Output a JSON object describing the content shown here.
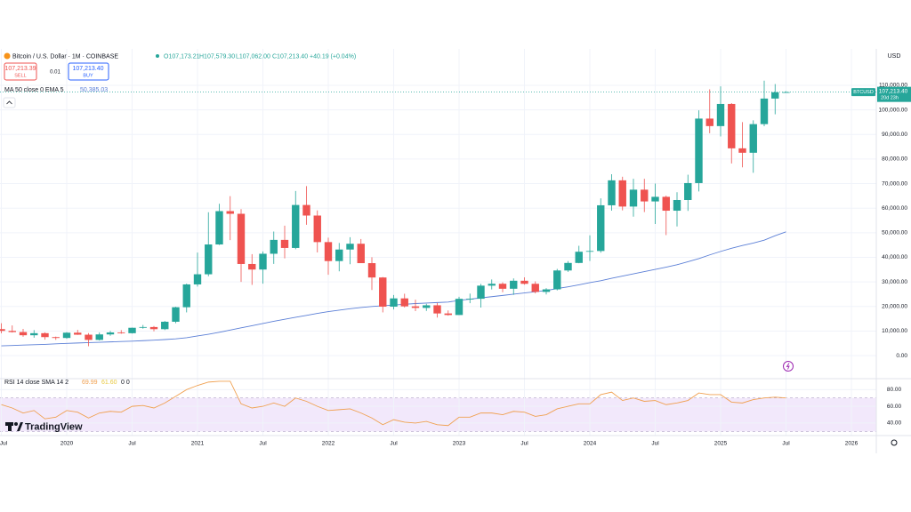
{
  "header": {
    "symbol": "Bitcoin / U.S. Dollar · 1M · COINBASE",
    "ohlc": [
      "O107,173.21",
      "H107,579.30",
      "L107,062.00",
      "C107,213.40"
    ],
    "change": "+40.19 (+0.04%)",
    "sell_price": "107,213.39",
    "sell": "SELL",
    "spread": "0.01",
    "buy_price": "107,213.40",
    "buy": "BUY",
    "currency": "USD",
    "price_label": "107,213.40",
    "countdown": "20d 23h",
    "logo": "TradingView"
  },
  "chart_data": {
    "type": "candlestick",
    "up_color": "#26a69a",
    "down_color": "#ef5350",
    "grid": true,
    "x": [
      "2019-07",
      "2019-08",
      "2019-09",
      "2019-10",
      "2019-11",
      "2019-12",
      "2020-01",
      "2020-02",
      "2020-03",
      "2020-04",
      "2020-05",
      "2020-06",
      "2020-07",
      "2020-08",
      "2020-09",
      "2020-10",
      "2020-11",
      "2020-12",
      "2021-01",
      "2021-02",
      "2021-03",
      "2021-04",
      "2021-05",
      "2021-06",
      "2021-07",
      "2021-08",
      "2021-09",
      "2021-10",
      "2021-11",
      "2021-12",
      "2022-01",
      "2022-02",
      "2022-03",
      "2022-04",
      "2022-05",
      "2022-06",
      "2022-07",
      "2022-08",
      "2022-09",
      "2022-10",
      "2022-11",
      "2022-12",
      "2023-01",
      "2023-02",
      "2023-03",
      "2023-04",
      "2023-05",
      "2023-06",
      "2023-07",
      "2023-08",
      "2023-09",
      "2023-10",
      "2023-11",
      "2023-12",
      "2024-01",
      "2024-02",
      "2024-03",
      "2024-04",
      "2024-05",
      "2024-06",
      "2024-07",
      "2024-08",
      "2024-09",
      "2024-10",
      "2024-11",
      "2024-12",
      "2025-01",
      "2025-02",
      "2025-03",
      "2025-04",
      "2025-05",
      "2025-06",
      "2025-07"
    ],
    "series": [
      {
        "name": "BTCUSD",
        "open": [
          10800,
          10080,
          9600,
          8300,
          9150,
          7550,
          7200,
          9350,
          8530,
          6410,
          8640,
          9450,
          9140,
          11350,
          11650,
          10780,
          13800,
          19700,
          28990,
          33110,
          45240,
          58800,
          57720,
          37300,
          35040,
          41460,
          47100,
          43820,
          61300,
          57000,
          46200,
          38480,
          43180,
          45530,
          37640,
          31800,
          19930,
          23300,
          20050,
          19430,
          20490,
          17170,
          16540,
          23130,
          23150,
          28480,
          29250,
          27220,
          30480,
          29230,
          25940,
          26970,
          34660,
          37720,
          42280,
          42580,
          61180,
          71330,
          60660,
          67530,
          62750,
          64620,
          58980,
          63330,
          70220,
          96450,
          93400,
          102400,
          84350,
          82550,
          94200,
          104600,
          107173.21
        ],
        "high": [
          13200,
          12300,
          10900,
          10400,
          9500,
          7750,
          9580,
          10500,
          9180,
          9460,
          10080,
          10400,
          11450,
          12480,
          12080,
          14100,
          19900,
          29300,
          41950,
          58350,
          61800,
          64900,
          59600,
          41300,
          42400,
          50500,
          52900,
          67000,
          69000,
          59100,
          47990,
          45850,
          48200,
          47450,
          40050,
          31990,
          24670,
          25200,
          22800,
          21100,
          21480,
          18400,
          23960,
          25250,
          29190,
          31000,
          29840,
          31430,
          31850,
          30230,
          27490,
          35300,
          38450,
          44700,
          48970,
          64000,
          73800,
          72800,
          71960,
          71950,
          70000,
          65100,
          66500,
          73620,
          99800,
          108350,
          109590,
          102750,
          95000,
          95750,
          111900,
          110500,
          107579.3
        ],
        "low": [
          9100,
          9400,
          7700,
          7300,
          6500,
          6430,
          6850,
          8450,
          3850,
          6150,
          8110,
          8900,
          8980,
          10990,
          9880,
          10420,
          13200,
          17600,
          28130,
          32300,
          45000,
          47000,
          30000,
          28800,
          29300,
          37330,
          39600,
          43300,
          53260,
          42000,
          32900,
          34320,
          37200,
          37700,
          26700,
          17600,
          18780,
          19600,
          18130,
          18200,
          15480,
          16260,
          16500,
          21350,
          19570,
          26940,
          25810,
          24750,
          28860,
          25330,
          24900,
          26560,
          34100,
          37600,
          38520,
          41900,
          59000,
          59100,
          56550,
          58420,
          53550,
          49050,
          52550,
          58900,
          66800,
          90500,
          89170,
          78200,
          76600,
          74400,
          93350,
          98200,
          107062.0
        ],
        "close": [
          10080,
          9600,
          8300,
          9150,
          7550,
          7200,
          9350,
          8530,
          6410,
          8640,
          9450,
          9140,
          11350,
          11650,
          10780,
          13800,
          19700,
          28990,
          33110,
          45240,
          58800,
          57720,
          37300,
          35040,
          41460,
          47100,
          43820,
          61300,
          57000,
          46200,
          38480,
          43180,
          45530,
          37640,
          31800,
          19930,
          23300,
          20050,
          19430,
          20490,
          17170,
          16540,
          23130,
          23150,
          28480,
          29250,
          27220,
          30480,
          29230,
          25940,
          26970,
          34660,
          37720,
          42280,
          42580,
          61180,
          71330,
          60660,
          67530,
          62750,
          64620,
          58980,
          63330,
          70220,
          96450,
          93400,
          102400,
          84350,
          82550,
          94200,
          104600,
          107173.21,
          107213.4
        ]
      }
    ],
    "ma": {
      "name": "MA 50 close 0 EMA 5",
      "color": "#5b7fd6",
      "value_label": "50,385.03",
      "values": [
        4000,
        4150,
        4300,
        4450,
        4600,
        4800,
        5000,
        5150,
        5300,
        5450,
        5600,
        5750,
        5900,
        6100,
        6300,
        6550,
        6850,
        7300,
        8000,
        8700,
        9500,
        10400,
        11300,
        12200,
        13100,
        14000,
        14800,
        15600,
        16400,
        17200,
        17900,
        18500,
        19100,
        19600,
        20000,
        20300,
        20600,
        20900,
        21200,
        21400,
        21600,
        21800,
        22500,
        23000,
        23500,
        24000,
        24500,
        25000,
        25500,
        26000,
        26500,
        27300,
        28000,
        28800,
        29700,
        30500,
        31500,
        32400,
        33300,
        34200,
        35100,
        36000,
        37000,
        38200,
        39500,
        41000,
        42400,
        43700,
        44800,
        45800,
        47000,
        48800,
        50385.03
      ]
    },
    "ylim": [
      -9000,
      123000
    ],
    "yticks": [
      {
        "value": 0,
        "label": "0.00"
      },
      {
        "value": 10000,
        "label": "10,000.00"
      },
      {
        "value": 20000,
        "label": "20,000.00"
      },
      {
        "value": 30000,
        "label": "30,000.00"
      },
      {
        "value": 40000,
        "label": "40,000.00"
      },
      {
        "value": 50000,
        "label": "50,000.00"
      },
      {
        "value": 60000,
        "label": "60,000.00"
      },
      {
        "value": 70000,
        "label": "70,000.00"
      },
      {
        "value": 80000,
        "label": "80,000.00"
      },
      {
        "value": 90000,
        "label": "90,000.00"
      },
      {
        "value": 100000,
        "label": "100,000.00"
      },
      {
        "value": 110000,
        "label": "110,000.00"
      }
    ],
    "xticks": [
      {
        "value": "2019-07",
        "label": "Jul"
      },
      {
        "value": "2020-01",
        "label": "2020"
      },
      {
        "value": "2020-07",
        "label": "Jul"
      },
      {
        "value": "2021-01",
        "label": "2021"
      },
      {
        "value": "2021-07",
        "label": "Jul"
      },
      {
        "value": "2022-01",
        "label": "2022"
      },
      {
        "value": "2022-07",
        "label": "Jul"
      },
      {
        "value": "2023-01",
        "label": "2023"
      },
      {
        "value": "2023-07",
        "label": "Jul"
      },
      {
        "value": "2024-01",
        "label": "2024"
      },
      {
        "value": "2024-07",
        "label": "Jul"
      },
      {
        "value": "2025-01",
        "label": "2025"
      },
      {
        "value": "2025-07",
        "label": "Jul"
      },
      {
        "value": "2026-01",
        "label": "2026"
      }
    ],
    "rsi": {
      "name": "RSI 14 close SMA 14 2",
      "color": "#f0a050",
      "value_label": "69.99",
      "sma_label": "61.60",
      "extra_label": "0 0",
      "band": [
        30,
        70
      ],
      "ylim": [
        25,
        91
      ],
      "yticks": [
        {
          "value": 40,
          "label": "40.00"
        },
        {
          "value": 60,
          "label": "60.00"
        },
        {
          "value": 80,
          "label": "80.00"
        }
      ],
      "values": [
        62,
        58,
        52,
        55,
        45,
        47,
        55,
        53,
        46,
        52,
        54,
        53,
        60,
        61,
        58,
        64,
        72,
        80,
        85,
        89,
        90,
        90,
        63,
        58,
        60,
        64,
        60,
        70,
        66,
        60,
        55,
        56,
        57,
        52,
        46,
        38,
        44,
        41,
        40,
        42,
        38,
        37,
        47,
        47,
        52,
        52,
        50,
        54,
        53,
        48,
        50,
        57,
        60,
        63,
        63,
        74,
        77,
        67,
        70,
        66,
        67,
        62,
        64,
        67,
        76,
        74,
        74,
        65,
        64,
        68,
        70,
        71,
        69.99
      ]
    }
  }
}
